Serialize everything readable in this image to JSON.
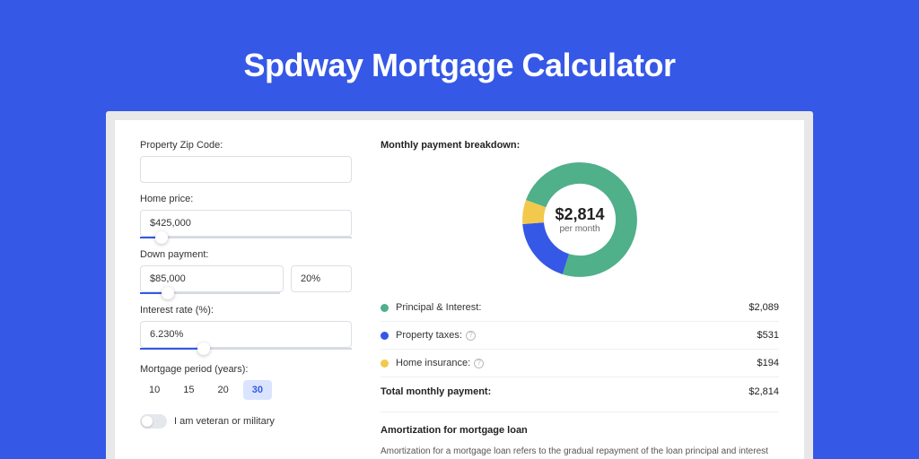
{
  "title": "Spdway Mortgage Calculator",
  "form": {
    "zip": {
      "label": "Property Zip Code:",
      "value": ""
    },
    "price": {
      "label": "Home price:",
      "value": "$425,000",
      "slider_pct": 10
    },
    "down": {
      "label": "Down payment:",
      "amount": "$85,000",
      "percent": "20%",
      "slider_pct": 20
    },
    "rate": {
      "label": "Interest rate (%):",
      "value": "6.230%",
      "slider_pct": 30
    },
    "period": {
      "label": "Mortgage period (years):",
      "options": [
        "10",
        "15",
        "20",
        "30"
      ],
      "active_index": 3
    },
    "veteran": {
      "label": "I am veteran or military",
      "on": false
    }
  },
  "breakdown": {
    "title": "Monthly payment breakdown:",
    "center_amount": "$2,814",
    "center_sub": "per month",
    "items": [
      {
        "label": "Principal & Interest:",
        "value": "$2,089",
        "color": "#4fb08a",
        "info": false
      },
      {
        "label": "Property taxes:",
        "value": "$531",
        "color": "#3558e6",
        "info": true
      },
      {
        "label": "Home insurance:",
        "value": "$194",
        "color": "#f2c94c",
        "info": true
      }
    ],
    "total_label": "Total monthly payment:",
    "total_value": "$2,814",
    "donut": {
      "slices": [
        {
          "color": "#4fb08a",
          "pct": 74.2
        },
        {
          "color": "#3558e6",
          "pct": 18.9
        },
        {
          "color": "#f2c94c",
          "pct": 6.9
        }
      ],
      "stroke_width": 22,
      "bg": "#ffffff"
    }
  },
  "amort": {
    "title": "Amortization for mortgage loan",
    "text": "Amortization for a mortgage loan refers to the gradual repayment of the loan principal and interest over a specified"
  },
  "colors": {
    "page_bg": "#3558e6",
    "card_bg": "#ffffff",
    "frame_bg": "#e8e8e8"
  }
}
